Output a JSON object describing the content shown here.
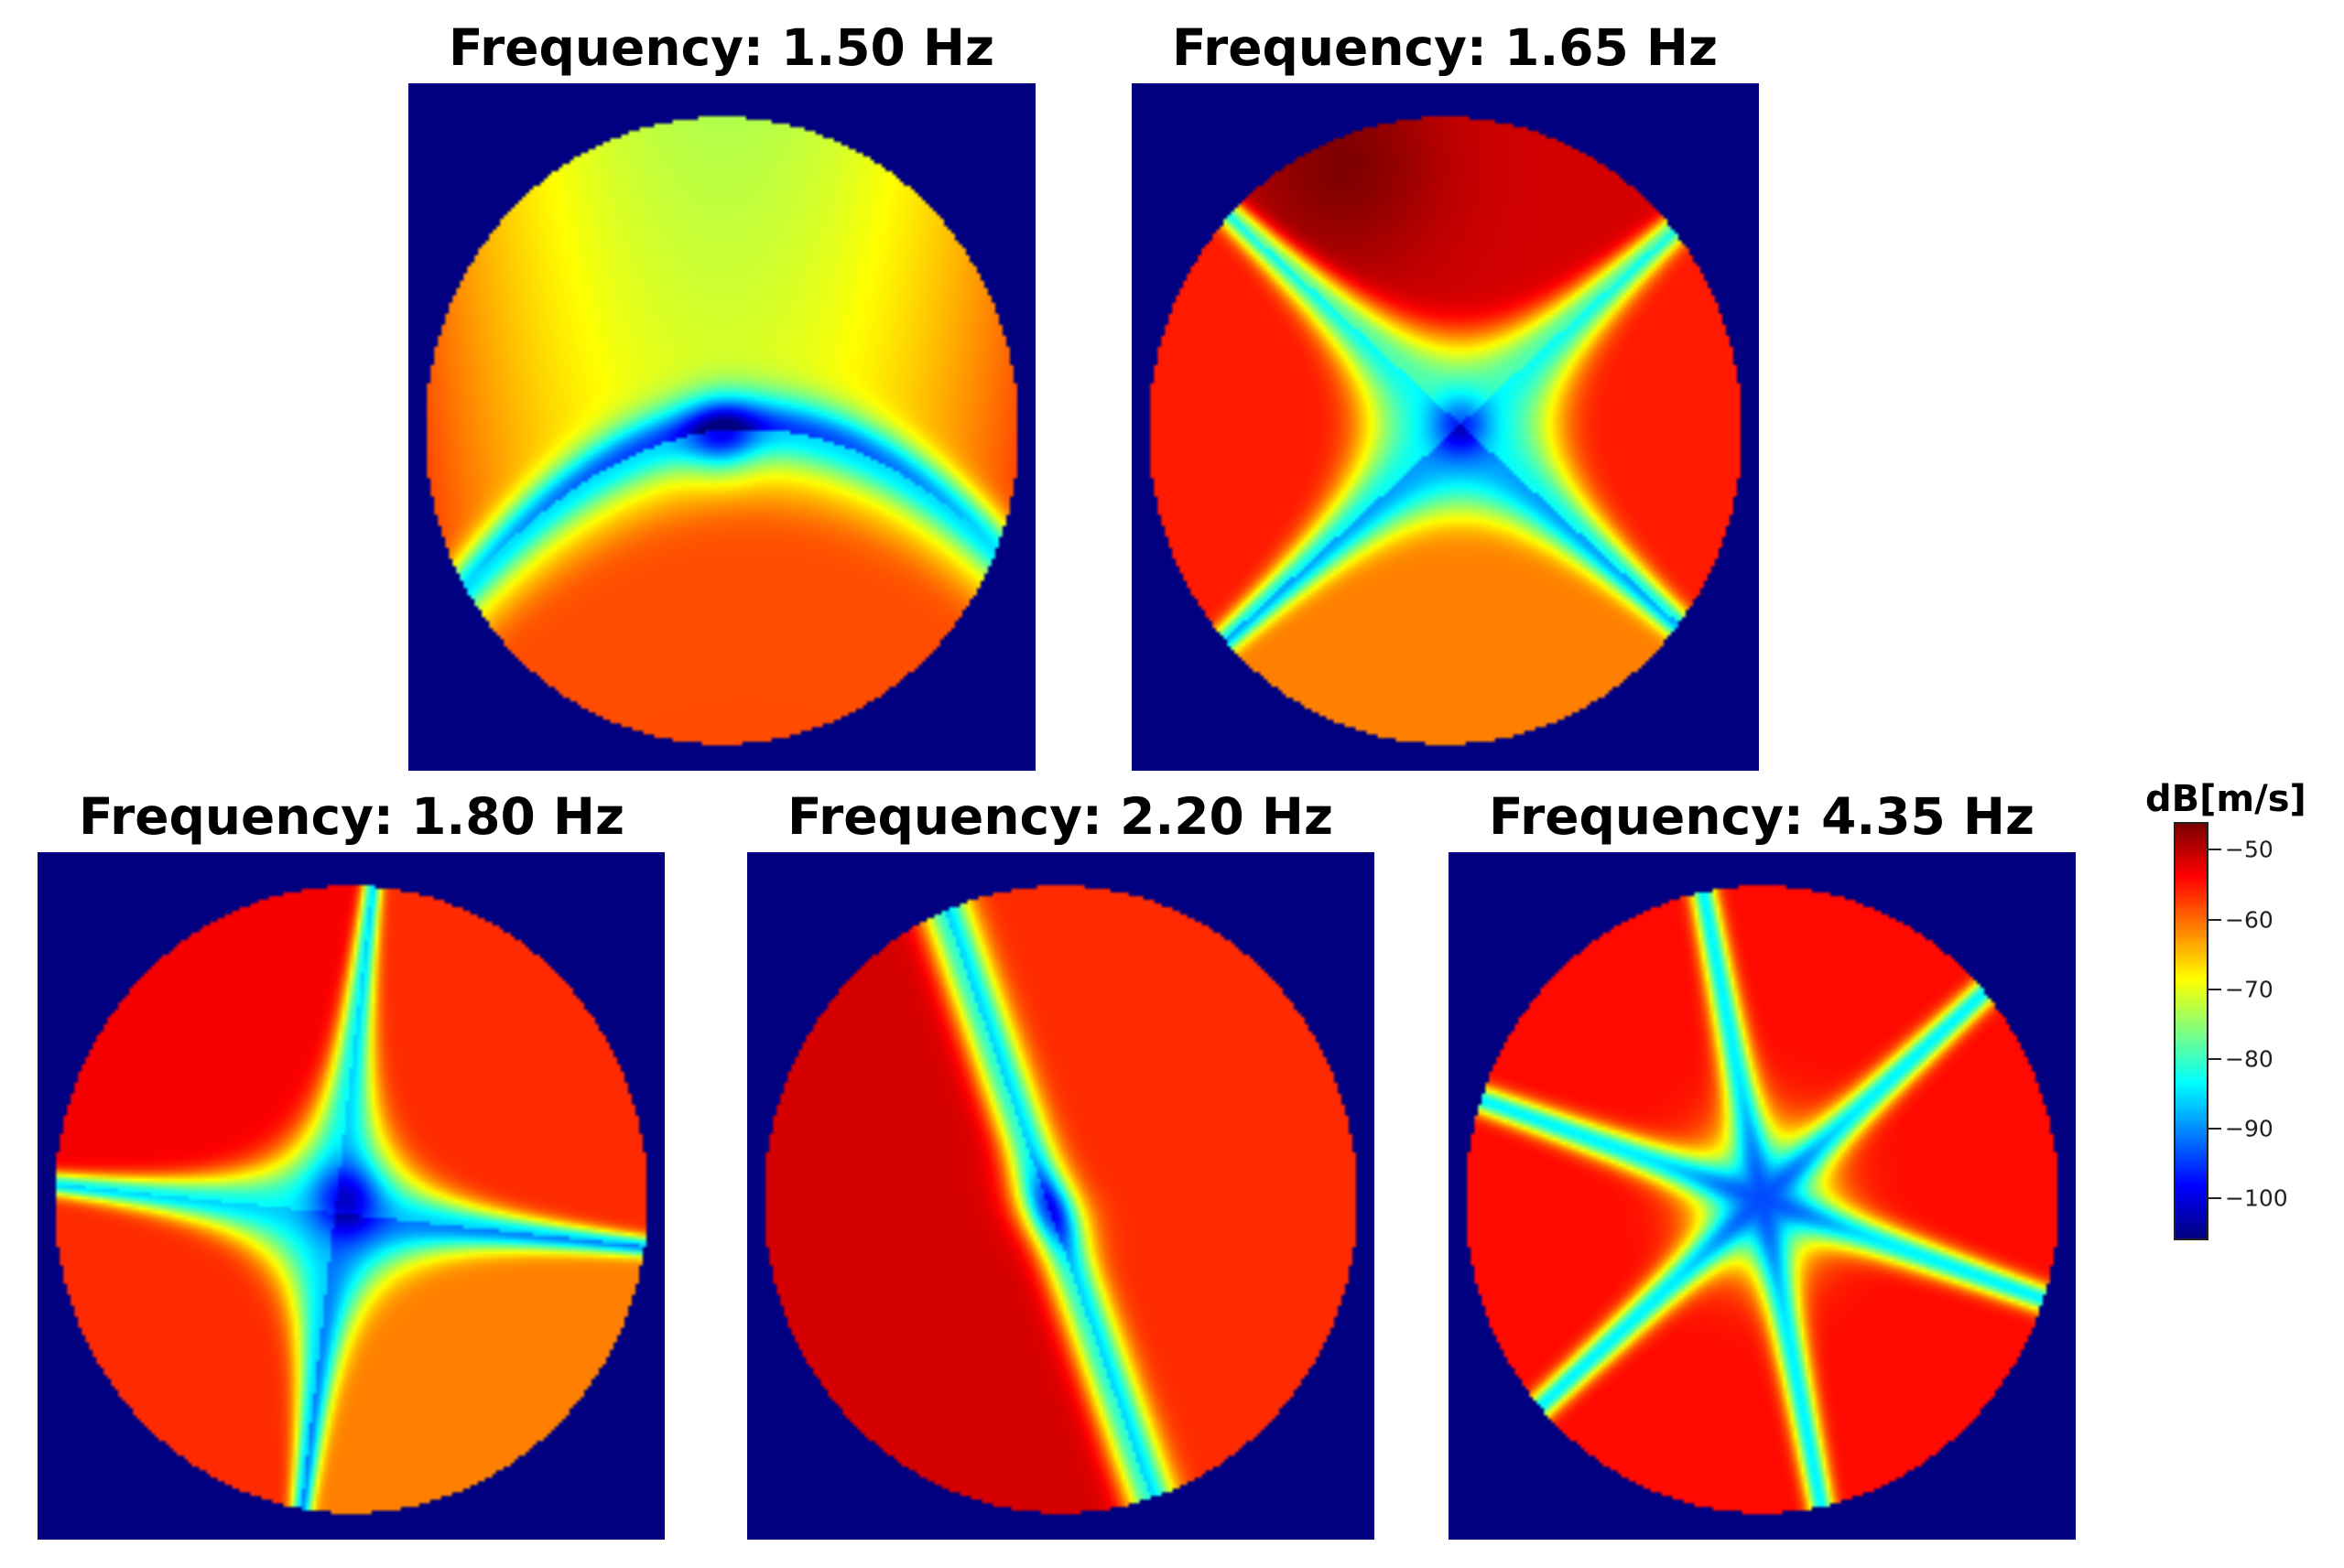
{
  "chart_data": {
    "type": "heatmap",
    "colormap": "jet",
    "background_color": "#000080",
    "panels": [
      {
        "title": "Frequency: 1.50 Hz"
      },
      {
        "title": "Frequency: 1.65 Hz"
      },
      {
        "title": "Frequency: 1.80 Hz"
      },
      {
        "title": "Frequency: 2.20 Hz"
      },
      {
        "title": "Frequency: 4.35 Hz"
      }
    ],
    "colorbar": {
      "label": "dB[m/s]",
      "range": [
        -106,
        -46
      ],
      "ticks": [
        -50,
        -60,
        -70,
        -80,
        -90,
        -100
      ],
      "tick_labels": [
        "−50",
        "−60",
        "−70",
        "−80",
        "−90",
        "−100"
      ]
    }
  }
}
